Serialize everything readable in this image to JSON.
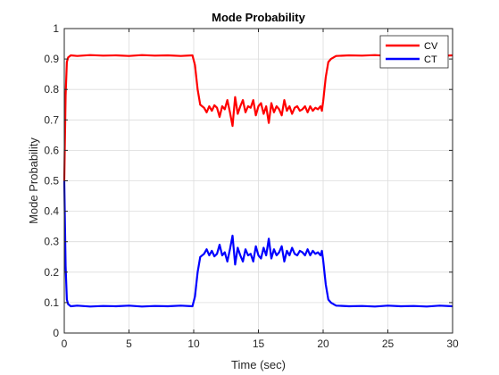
{
  "chart_data": {
    "type": "line",
    "title": "Mode Probability",
    "xlabel": "Time (sec)",
    "ylabel": "Mode Probability",
    "xlim": [
      0,
      30
    ],
    "ylim": [
      0,
      1
    ],
    "xticks": [
      "0",
      "5",
      "10",
      "15",
      "20",
      "25",
      "30"
    ],
    "yticks": [
      "0",
      "0.1",
      "0.2",
      "0.3",
      "0.4",
      "0.5",
      "0.6",
      "0.7",
      "0.8",
      "0.9",
      "1"
    ],
    "grid": true,
    "legend_position": "top-right",
    "series": [
      {
        "name": "CV",
        "color": "#ff0000",
        "points": [
          [
            0,
            0.5
          ],
          [
            0.1,
            0.78
          ],
          [
            0.2,
            0.89
          ],
          [
            0.3,
            0.905
          ],
          [
            0.5,
            0.912
          ],
          [
            1,
            0.91
          ],
          [
            2,
            0.913
          ],
          [
            3,
            0.911
          ],
          [
            4,
            0.912
          ],
          [
            5,
            0.91
          ],
          [
            6,
            0.913
          ],
          [
            7,
            0.911
          ],
          [
            8,
            0.912
          ],
          [
            9,
            0.91
          ],
          [
            9.9,
            0.912
          ],
          [
            10.1,
            0.88
          ],
          [
            10.3,
            0.8
          ],
          [
            10.5,
            0.75
          ],
          [
            10.8,
            0.74
          ],
          [
            11.0,
            0.725
          ],
          [
            11.2,
            0.745
          ],
          [
            11.4,
            0.73
          ],
          [
            11.6,
            0.748
          ],
          [
            11.8,
            0.74
          ],
          [
            12.0,
            0.71
          ],
          [
            12.2,
            0.745
          ],
          [
            12.4,
            0.735
          ],
          [
            12.6,
            0.765
          ],
          [
            12.8,
            0.725
          ],
          [
            13.0,
            0.68
          ],
          [
            13.2,
            0.775
          ],
          [
            13.4,
            0.72
          ],
          [
            13.6,
            0.745
          ],
          [
            13.8,
            0.765
          ],
          [
            14.0,
            0.725
          ],
          [
            14.2,
            0.745
          ],
          [
            14.4,
            0.74
          ],
          [
            14.6,
            0.765
          ],
          [
            14.8,
            0.715
          ],
          [
            15.0,
            0.745
          ],
          [
            15.2,
            0.755
          ],
          [
            15.4,
            0.72
          ],
          [
            15.6,
            0.745
          ],
          [
            15.8,
            0.69
          ],
          [
            16.0,
            0.755
          ],
          [
            16.2,
            0.725
          ],
          [
            16.4,
            0.745
          ],
          [
            16.6,
            0.735
          ],
          [
            16.8,
            0.715
          ],
          [
            17.0,
            0.765
          ],
          [
            17.2,
            0.73
          ],
          [
            17.4,
            0.745
          ],
          [
            17.6,
            0.72
          ],
          [
            17.8,
            0.74
          ],
          [
            18.0,
            0.745
          ],
          [
            18.2,
            0.73
          ],
          [
            18.4,
            0.735
          ],
          [
            18.6,
            0.745
          ],
          [
            18.8,
            0.725
          ],
          [
            19.0,
            0.745
          ],
          [
            19.2,
            0.73
          ],
          [
            19.4,
            0.74
          ],
          [
            19.6,
            0.735
          ],
          [
            19.8,
            0.745
          ],
          [
            19.9,
            0.73
          ],
          [
            20.0,
            0.76
          ],
          [
            20.2,
            0.84
          ],
          [
            20.4,
            0.89
          ],
          [
            20.6,
            0.9
          ],
          [
            21,
            0.91
          ],
          [
            22,
            0.912
          ],
          [
            23,
            0.911
          ],
          [
            24,
            0.913
          ],
          [
            25,
            0.91
          ],
          [
            26,
            0.912
          ],
          [
            27,
            0.911
          ],
          [
            28,
            0.913
          ],
          [
            29,
            0.91
          ],
          [
            30,
            0.912
          ]
        ]
      },
      {
        "name": "CT",
        "color": "#0000ff",
        "points": [
          [
            0,
            0.5
          ],
          [
            0.1,
            0.22
          ],
          [
            0.2,
            0.11
          ],
          [
            0.3,
            0.095
          ],
          [
            0.5,
            0.088
          ],
          [
            1,
            0.09
          ],
          [
            2,
            0.087
          ],
          [
            3,
            0.089
          ],
          [
            4,
            0.088
          ],
          [
            5,
            0.09
          ],
          [
            6,
            0.087
          ],
          [
            7,
            0.089
          ],
          [
            8,
            0.088
          ],
          [
            9,
            0.09
          ],
          [
            9.9,
            0.088
          ],
          [
            10.1,
            0.12
          ],
          [
            10.3,
            0.2
          ],
          [
            10.5,
            0.25
          ],
          [
            10.8,
            0.26
          ],
          [
            11.0,
            0.275
          ],
          [
            11.2,
            0.255
          ],
          [
            11.4,
            0.27
          ],
          [
            11.6,
            0.252
          ],
          [
            11.8,
            0.26
          ],
          [
            12.0,
            0.29
          ],
          [
            12.2,
            0.255
          ],
          [
            12.4,
            0.265
          ],
          [
            12.6,
            0.235
          ],
          [
            12.8,
            0.275
          ],
          [
            13.0,
            0.32
          ],
          [
            13.2,
            0.225
          ],
          [
            13.4,
            0.28
          ],
          [
            13.6,
            0.255
          ],
          [
            13.8,
            0.235
          ],
          [
            14.0,
            0.275
          ],
          [
            14.2,
            0.255
          ],
          [
            14.4,
            0.26
          ],
          [
            14.6,
            0.235
          ],
          [
            14.8,
            0.285
          ],
          [
            15.0,
            0.255
          ],
          [
            15.2,
            0.245
          ],
          [
            15.4,
            0.28
          ],
          [
            15.6,
            0.255
          ],
          [
            15.8,
            0.31
          ],
          [
            16.0,
            0.245
          ],
          [
            16.2,
            0.275
          ],
          [
            16.4,
            0.255
          ],
          [
            16.6,
            0.265
          ],
          [
            16.8,
            0.285
          ],
          [
            17.0,
            0.235
          ],
          [
            17.2,
            0.27
          ],
          [
            17.4,
            0.255
          ],
          [
            17.6,
            0.28
          ],
          [
            17.8,
            0.26
          ],
          [
            18.0,
            0.255
          ],
          [
            18.2,
            0.27
          ],
          [
            18.4,
            0.265
          ],
          [
            18.6,
            0.255
          ],
          [
            18.8,
            0.275
          ],
          [
            19.0,
            0.255
          ],
          [
            19.2,
            0.27
          ],
          [
            19.4,
            0.26
          ],
          [
            19.6,
            0.265
          ],
          [
            19.8,
            0.255
          ],
          [
            19.9,
            0.27
          ],
          [
            20.0,
            0.24
          ],
          [
            20.2,
            0.16
          ],
          [
            20.4,
            0.11
          ],
          [
            20.6,
            0.1
          ],
          [
            21,
            0.09
          ],
          [
            22,
            0.088
          ],
          [
            23,
            0.089
          ],
          [
            24,
            0.087
          ],
          [
            25,
            0.09
          ],
          [
            26,
            0.088
          ],
          [
            27,
            0.089
          ],
          [
            28,
            0.087
          ],
          [
            29,
            0.09
          ],
          [
            30,
            0.088
          ]
        ]
      }
    ]
  }
}
